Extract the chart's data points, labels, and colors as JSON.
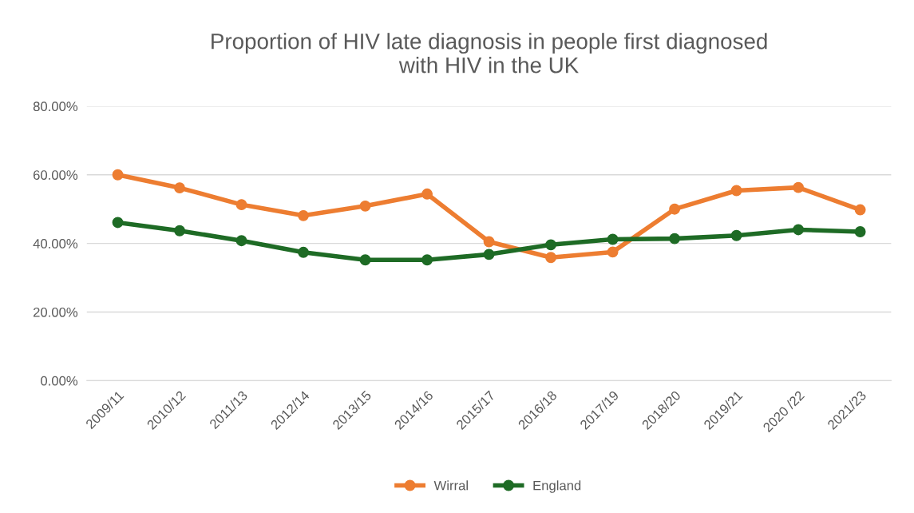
{
  "chart_data": {
    "type": "line",
    "title": "Proportion of HIV late diagnosis in people first diagnosed\nwith HIV in the UK",
    "categories": [
      "2009/11",
      "2010/12",
      "2011/13",
      "2012/14",
      "2013/15",
      "2014/16",
      "2015/17",
      "2016/18",
      "2017/19",
      "2018/20",
      "2019/21",
      "2020 /22",
      "2021/23"
    ],
    "series": [
      {
        "name": "Wirral",
        "color": "#ed7d31",
        "values": [
          60.0,
          56.2,
          51.3,
          48.1,
          50.9,
          54.4,
          40.5,
          35.9,
          37.5,
          50.0,
          55.4,
          56.3,
          49.8
        ]
      },
      {
        "name": "England",
        "color": "#1e6b25",
        "values": [
          46.1,
          43.7,
          40.8,
          37.4,
          35.2,
          35.2,
          36.8,
          39.6,
          41.2,
          41.4,
          42.3,
          44.0,
          43.4
        ]
      }
    ],
    "ylim": [
      0,
      80
    ],
    "yticks": [
      {
        "value": 0,
        "label": "0.00%"
      },
      {
        "value": 20,
        "label": "20.00%"
      },
      {
        "value": 40,
        "label": "40.00%"
      },
      {
        "value": 60,
        "label": "60.00%"
      },
      {
        "value": 80,
        "label": "80.00%"
      }
    ],
    "grid": "y",
    "legend": "bottom",
    "marker": "circle",
    "line_style": "solid"
  }
}
